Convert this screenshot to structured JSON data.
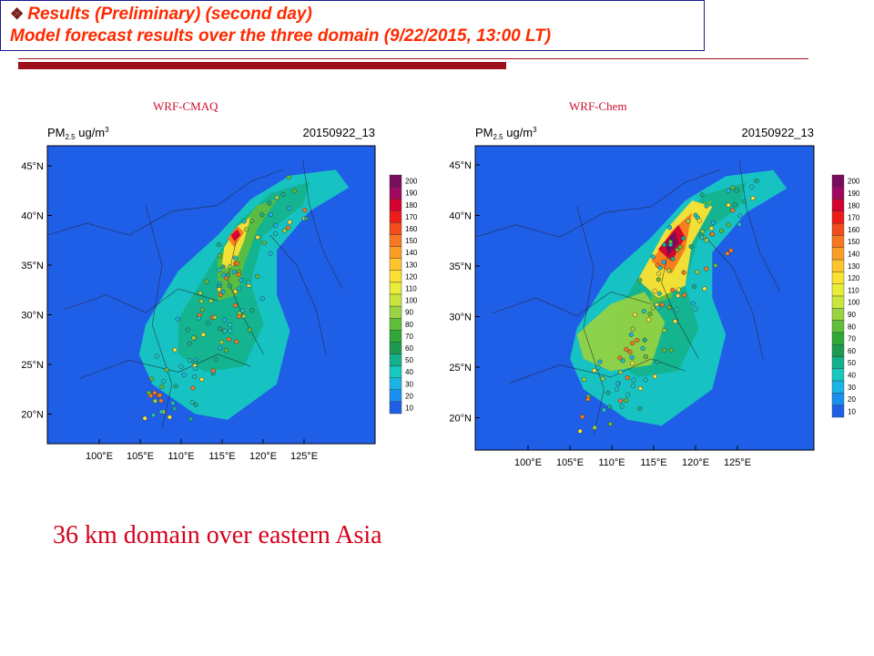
{
  "header": {
    "bullet": "❖",
    "line1": "Results (Preliminary) (second day)",
    "line2": "Model forecast results over the three domain (9/22/2015, 13:00 LT)"
  },
  "panels": [
    {
      "label": "WRF-CMAQ",
      "variable": "PM",
      "subscript": "2.5",
      "units": "ug/m",
      "units_sup": "3",
      "timestamp": "20150922_13",
      "lat_labels": [
        "45°N",
        "40°N",
        "35°N",
        "30°N",
        "25°N",
        "20°N"
      ],
      "lon_labels": [
        "100°E",
        "105°E",
        "110°E",
        "115°E",
        "120°E",
        "125°E"
      ]
    },
    {
      "label": "WRF-Chem",
      "variable": "PM",
      "subscript": "2.5",
      "units": "ug/m",
      "units_sup": "3",
      "timestamp": "20150922_13",
      "lat_labels": [
        "45°N",
        "40°N",
        "35°N",
        "30°N",
        "25°N",
        "20°N"
      ],
      "lon_labels": [
        "100°E",
        "105°E",
        "110°E",
        "115°E",
        "120°E",
        "125°E"
      ]
    }
  ],
  "colorbar": {
    "levels": [
      "200",
      "190",
      "180",
      "170",
      "160",
      "150",
      "140",
      "130",
      "120",
      "110",
      "100",
      "90",
      "80",
      "70",
      "60",
      "50",
      "40",
      "30",
      "20",
      "10"
    ],
    "colors": [
      "#7a0c5e",
      "#a1085f",
      "#d4002f",
      "#ee1b1b",
      "#f24b1c",
      "#f7781f",
      "#fb9e26",
      "#fec52e",
      "#fbe134",
      "#e7ee3a",
      "#c8e63c",
      "#99d33f",
      "#5fbe3a",
      "#2fa837",
      "#1d9a50",
      "#14b28c",
      "#17c7c0",
      "#1ab5e4",
      "#1a8ff0",
      "#1f5fe8"
    ]
  },
  "footer": {
    "text": "36 km domain over eastern Asia"
  }
}
